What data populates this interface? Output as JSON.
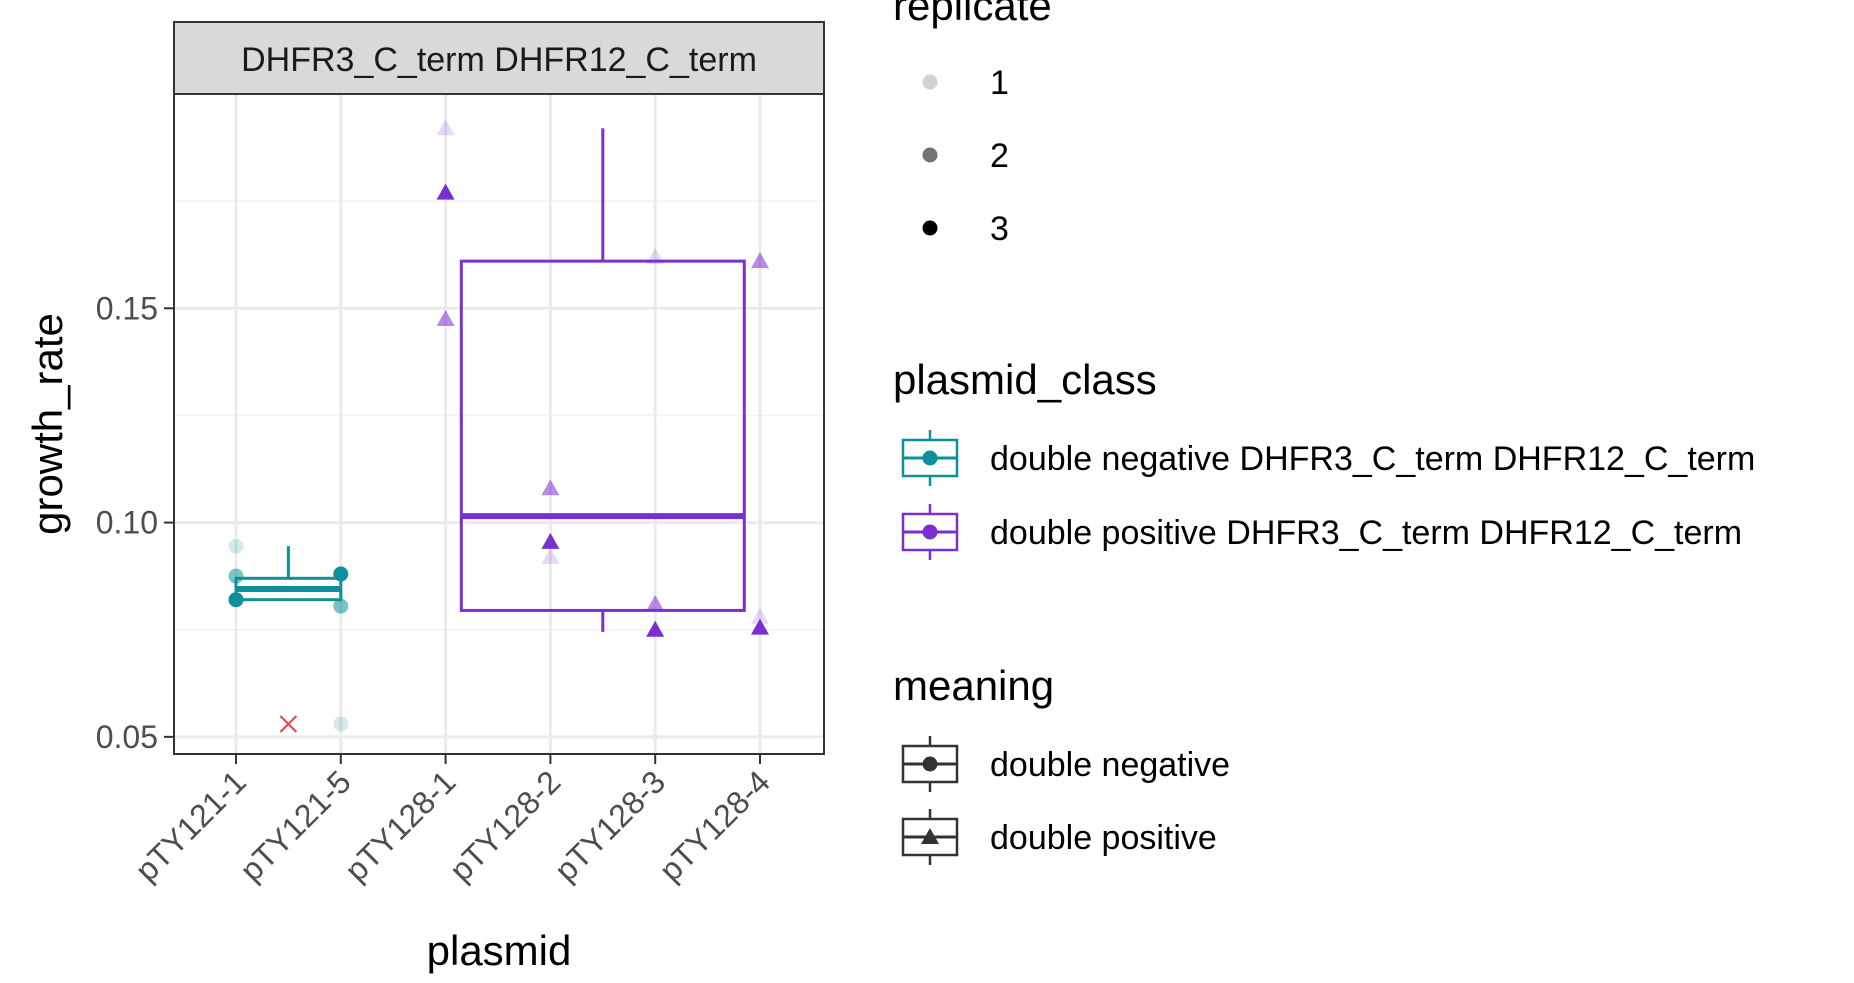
{
  "chart_data": {
    "type": "boxplot",
    "facet_label": "DHFR3_C_term DHFR12_C_term",
    "xlabel": "plasmid",
    "ylabel": "growth_rate",
    "ylim": [
      0.046,
      0.2
    ],
    "yticks": [
      0.05,
      0.1,
      0.15
    ],
    "ytick_labels": [
      "0.05",
      "0.10",
      "0.15"
    ],
    "grid": true,
    "x_categories": [
      "pTY121-1",
      "pTY121-5",
      "pTY128-1",
      "pTY128-2",
      "pTY128-3",
      "pTY128-4"
    ],
    "boxes": [
      {
        "class": "double negative DHFR3_C_term DHFR12_C_term",
        "center": 1.5,
        "half_width": 0.5,
        "q1": 0.082,
        "median": 0.0845,
        "q3": 0.087,
        "whisker_low": 0.082,
        "whisker_high": 0.0945
      },
      {
        "class": "double positive DHFR3_C_term DHFR12_C_term",
        "center": 4.5,
        "half_width": 1.35,
        "q1": 0.0795,
        "median": 0.1015,
        "q3": 0.161,
        "whisker_low": 0.0745,
        "whisker_high": 0.192
      }
    ],
    "points": [
      {
        "x": 1,
        "y": 0.0945,
        "replicate": 1,
        "meaning": "double negative"
      },
      {
        "x": 1,
        "y": 0.0875,
        "replicate": 2,
        "meaning": "double negative"
      },
      {
        "x": 1,
        "y": 0.082,
        "replicate": 3,
        "meaning": "double negative"
      },
      {
        "x": 2,
        "y": 0.053,
        "replicate": 1,
        "meaning": "double negative"
      },
      {
        "x": 2,
        "y": 0.0805,
        "replicate": 2,
        "meaning": "double negative"
      },
      {
        "x": 2,
        "y": 0.088,
        "replicate": 3,
        "meaning": "double negative"
      },
      {
        "x": 3,
        "y": 0.192,
        "replicate": 1,
        "meaning": "double positive"
      },
      {
        "x": 3,
        "y": 0.1475,
        "replicate": 2,
        "meaning": "double positive"
      },
      {
        "x": 3,
        "y": 0.177,
        "replicate": 3,
        "meaning": "double positive"
      },
      {
        "x": 4,
        "y": 0.092,
        "replicate": 1,
        "meaning": "double positive"
      },
      {
        "x": 4,
        "y": 0.108,
        "replicate": 2,
        "meaning": "double positive"
      },
      {
        "x": 4,
        "y": 0.0955,
        "replicate": 3,
        "meaning": "double positive"
      },
      {
        "x": 5,
        "y": 0.162,
        "replicate": 1,
        "meaning": "double positive"
      },
      {
        "x": 5,
        "y": 0.081,
        "replicate": 2,
        "meaning": "double positive"
      },
      {
        "x": 5,
        "y": 0.075,
        "replicate": 3,
        "meaning": "double positive"
      },
      {
        "x": 6,
        "y": 0.078,
        "replicate": 1,
        "meaning": "double positive"
      },
      {
        "x": 6,
        "y": 0.161,
        "replicate": 2,
        "meaning": "double positive"
      },
      {
        "x": 6,
        "y": 0.0755,
        "replicate": 3,
        "meaning": "double positive"
      }
    ],
    "outliers": [
      {
        "x": 1.5,
        "y": 0.053,
        "marker": "cross"
      }
    ],
    "legends": {
      "replicate": {
        "title": "replicate",
        "entries": [
          "1",
          "2",
          "3"
        ]
      },
      "plasmid_class": {
        "title": "plasmid_class",
        "entries": [
          "double negative DHFR3_C_term DHFR12_C_term",
          "double positive DHFR3_C_term DHFR12_C_term"
        ]
      },
      "meaning": {
        "title": "meaning",
        "entries": [
          "double negative",
          "double positive"
        ]
      }
    },
    "legend_placement": "right",
    "colors": {
      "double negative DHFR3_C_term DHFR12_C_term": "#0d9099",
      "double positive DHFR3_C_term DHFR12_C_term": "#7a2fd1",
      "outlier": "#e84c4c",
      "grid": "#ebebeb",
      "strip": "#d9d9d9"
    }
  }
}
